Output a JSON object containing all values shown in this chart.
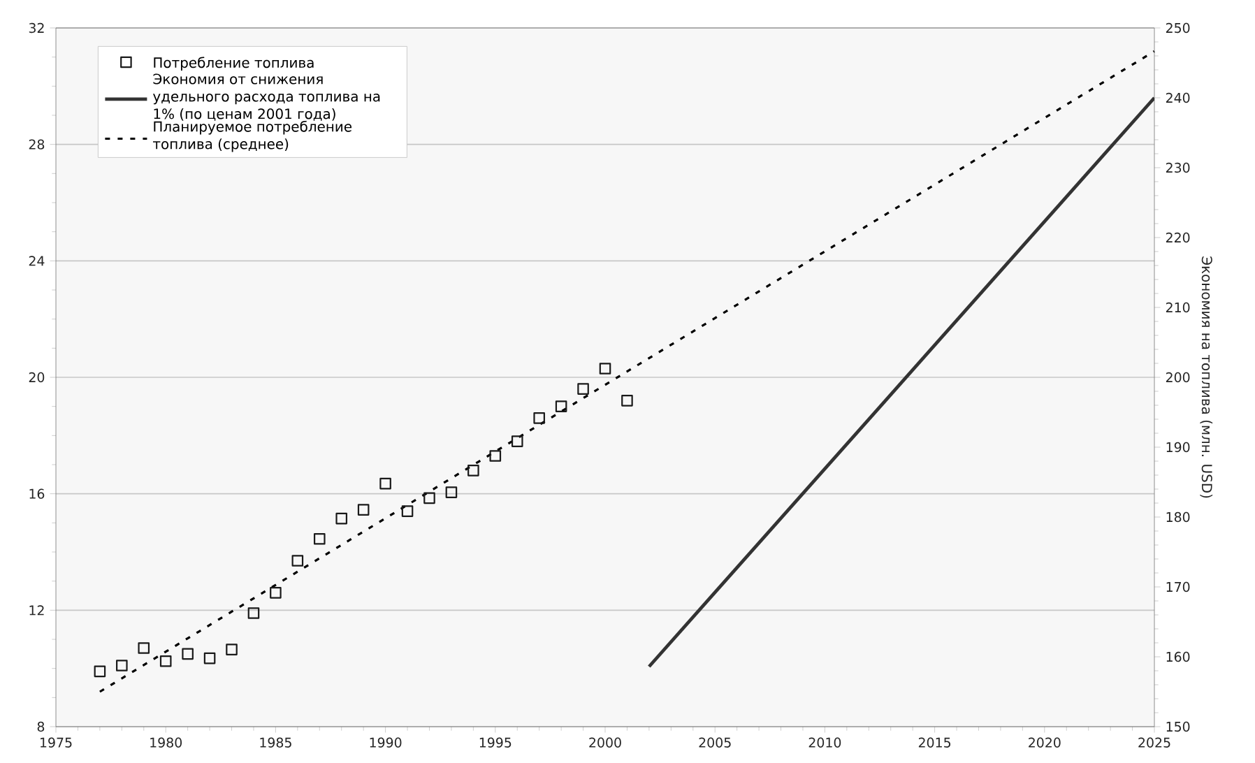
{
  "chart_data": {
    "type": "line",
    "y2label": "Экономия на топлива (млн. USD)",
    "xlim": [
      1975,
      2025
    ],
    "xticks": [
      1975,
      1980,
      1985,
      1990,
      1995,
      2000,
      2005,
      2010,
      2015,
      2020,
      2025
    ],
    "ylim": [
      8,
      32
    ],
    "yticks": [
      8,
      12,
      16,
      20,
      24,
      28,
      32
    ],
    "y2lim": [
      150,
      250
    ],
    "y2ticks": [
      150,
      160,
      170,
      180,
      190,
      200,
      210,
      220,
      230,
      240,
      250
    ],
    "grid": "y",
    "legend": "top left",
    "series": [
      {
        "name": "Потребление топлива",
        "type": "scatter",
        "marker": "square",
        "color": "#1a1a1a",
        "x": [
          1977,
          1978,
          1979,
          1980,
          1981,
          1982,
          1983,
          1984,
          1985,
          1986,
          1987,
          1988,
          1989,
          1990,
          1991,
          1992,
          1993,
          1994,
          1995,
          1996,
          1997,
          1998,
          1999,
          2000,
          2001
        ],
        "values": [
          9.9,
          10.1,
          10.7,
          10.25,
          10.5,
          10.35,
          10.65,
          11.9,
          12.6,
          13.7,
          14.45,
          15.15,
          15.45,
          16.35,
          15.4,
          15.85,
          16.05,
          16.8,
          17.3,
          17.8,
          18.6,
          19.0,
          19.6,
          20.3,
          19.2
        ]
      },
      {
        "name": "Экономия от снижения удельного расхода топлива на 1% (по ценам 2001 года)",
        "marker": "none",
        "line_style": "solid",
        "axis": "y2",
        "color": "#333333",
        "x": [
          2002,
          2025
        ],
        "values": [
          158.6,
          240
        ]
      },
      {
        "name": "Планируемое потребление топлива (среднее)",
        "marker": "none",
        "line_style": "dashed",
        "color": "#000000",
        "x": [
          1977,
          2025
        ],
        "values": [
          9.2,
          31.2
        ]
      }
    ]
  }
}
